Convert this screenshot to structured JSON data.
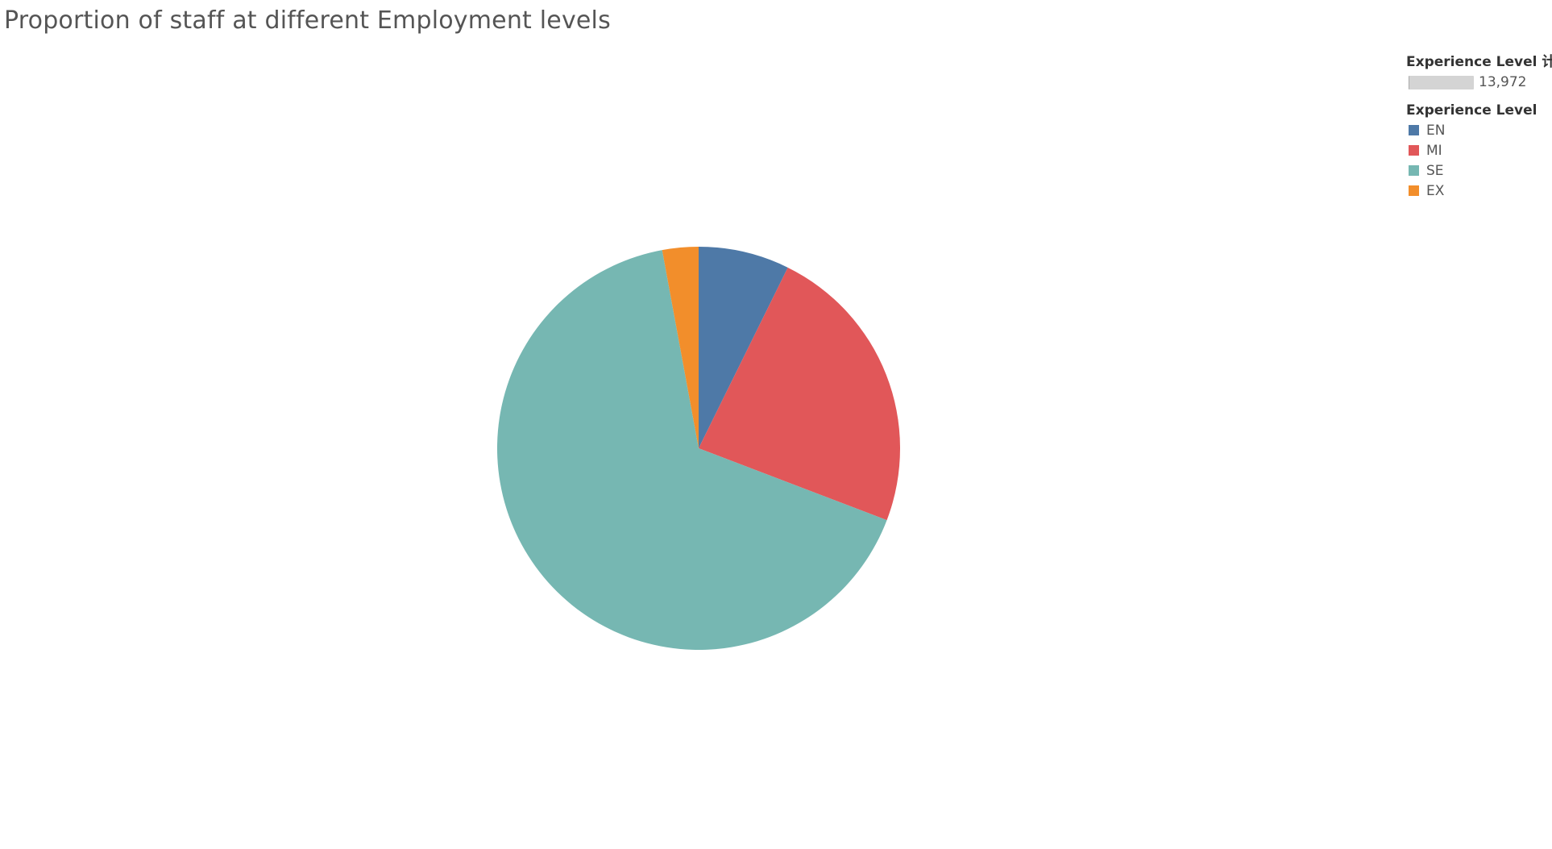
{
  "chart_data": {
    "type": "pie",
    "title": "Proportion of staff at different Employment levels",
    "size_legend": {
      "heading": "Experience Level 计数",
      "value": "13,972"
    },
    "color_legend": {
      "heading": "Experience Level",
      "placement": "top-right"
    },
    "slices": [
      {
        "label": "EN",
        "value": 7.3,
        "color": "#4e79a7"
      },
      {
        "label": "MI",
        "value": 23.5,
        "color": "#e15759"
      },
      {
        "label": "SE",
        "value": 66.3,
        "color": "#76b7b2"
      },
      {
        "label": "EX",
        "value": 2.9,
        "color": "#f28e2b"
      }
    ],
    "start_angle": "12 o'clock",
    "direction": "clockwise"
  }
}
